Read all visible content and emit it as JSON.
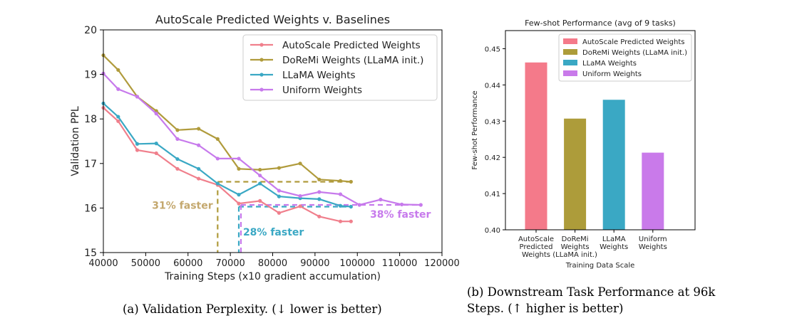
{
  "chart_data": [
    {
      "type": "line",
      "title": "AutoScale Predicted Weights v. Baselines",
      "xlabel": "Training Steps (x10 gradient accumulation)",
      "ylabel": "Validation PPL",
      "xlim": [
        40000,
        120000
      ],
      "ylim": [
        15,
        20
      ],
      "xticks": [
        "40000",
        "50000",
        "60000",
        "70000",
        "80000",
        "90000",
        "100000",
        "110000",
        "120000"
      ],
      "xtick_values": [
        40000,
        50000,
        60000,
        70000,
        80000,
        90000,
        100000,
        110000,
        120000
      ],
      "yticks": [
        "15",
        "16",
        "17",
        "18",
        "19",
        "20"
      ],
      "ytick_values": [
        15,
        16,
        17,
        18,
        19,
        20
      ],
      "grid": false,
      "legend_position": "top-right",
      "series": [
        {
          "name": "AutoScale Predicted Weights",
          "color": "#f07f8c",
          "x": [
            40000,
            43500,
            48000,
            52500,
            57500,
            62500,
            67000,
            72000,
            77000,
            81500,
            86500,
            91000,
            96000,
            98500
          ],
          "y": [
            18.25,
            17.95,
            17.3,
            17.23,
            16.88,
            16.66,
            16.52,
            16.1,
            16.16,
            15.89,
            16.04,
            15.81,
            15.7,
            15.7
          ]
        },
        {
          "name": "DoReMi Weights (LLaMA init.)",
          "color": "#b09b3c",
          "x": [
            40000,
            43500,
            48000,
            52500,
            57500,
            62500,
            67000,
            72000,
            77000,
            81500,
            86500,
            91000,
            96000,
            98500
          ],
          "y": [
            19.43,
            19.1,
            18.5,
            18.18,
            17.75,
            17.78,
            17.55,
            16.88,
            16.86,
            16.9,
            17.0,
            16.64,
            16.61,
            16.59
          ]
        },
        {
          "name": "LLaMA Weights",
          "color": "#3aa8c4",
          "x": [
            40000,
            43500,
            48000,
            52500,
            57500,
            62500,
            67000,
            72000,
            77000,
            81500,
            86500,
            91000,
            96000,
            98500
          ],
          "y": [
            18.35,
            18.05,
            17.44,
            17.45,
            17.1,
            16.88,
            16.55,
            16.3,
            16.55,
            16.26,
            16.22,
            16.2,
            16.05,
            16.03
          ]
        },
        {
          "name": "Uniform Weights",
          "color": "#c77aec",
          "x": [
            40000,
            43500,
            48000,
            52500,
            57500,
            62500,
            67000,
            72000,
            77000,
            81500,
            86500,
            91000,
            96000,
            100500,
            105500,
            110500,
            115000
          ],
          "y": [
            19.02,
            18.67,
            18.5,
            18.12,
            17.55,
            17.41,
            17.11,
            17.11,
            16.73,
            16.39,
            16.27,
            16.36,
            16.31,
            16.07,
            16.19,
            16.08,
            16.07
          ]
        }
      ],
      "reference_lines": [
        {
          "series": "DoReMi Weights (LLaMA init.)",
          "level_y": 16.59,
          "from_x": 67000,
          "to_x": 98500,
          "drop_x": 67000
        },
        {
          "series": "LLaMA Weights",
          "level_y": 16.03,
          "from_x": 72000,
          "to_x": 98500,
          "drop_x": 72000
        },
        {
          "series": "Uniform Weights",
          "level_y": 16.07,
          "from_x": 72500,
          "to_x": 115000,
          "drop_x": 72500
        }
      ],
      "annotations": [
        {
          "text": "31% faster",
          "color": "#c4a86e",
          "x": 51500,
          "y": 15.98
        },
        {
          "text": "28% faster",
          "color": "#3aa8c4",
          "x": 73000,
          "y": 15.38
        },
        {
          "text": "38% faster",
          "color": "#c77aec",
          "x": 103000,
          "y": 15.78
        }
      ]
    },
    {
      "type": "bar",
      "title": "Few-shot Performance (avg of 9 tasks)",
      "xlabel": "Training Data Scale",
      "ylabel": "Few-shot Performance",
      "ylim": [
        0.4,
        0.455
      ],
      "yticks": [
        "0.40",
        "0.41",
        "0.42",
        "0.43",
        "0.44",
        "0.45"
      ],
      "ytick_values": [
        0.4,
        0.41,
        0.42,
        0.43,
        0.44,
        0.45
      ],
      "categories": [
        [
          "AutoScale",
          "Predicted",
          "Weights"
        ],
        [
          "DoReMi",
          "Weights",
          "(LLaMA init.)"
        ],
        [
          "LLaMA",
          "Weights"
        ],
        [
          "Uniform",
          "Weights"
        ]
      ],
      "values": [
        0.4462,
        0.4307,
        0.4359,
        0.4213
      ],
      "colors": [
        "#f47a8a",
        "#ad9c3a",
        "#3aa8c4",
        "#c97aea"
      ],
      "legend": [
        "AutoScale Predicted Weights",
        "DoReMi Weights (LLaMA init.)",
        "LLaMA Weights",
        "Uniform Weights"
      ],
      "legend_position": "top-right",
      "grid": false
    }
  ],
  "captions": {
    "a": "(a) Validation Perplexity. (↓ lower is better)",
    "b": "(b) Downstream Task Performance at 96k Steps. (↑ higher is better)"
  }
}
